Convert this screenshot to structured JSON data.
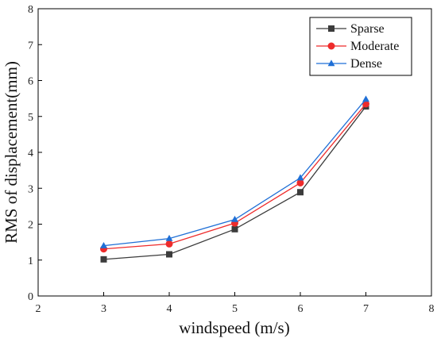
{
  "chart_data": {
    "type": "line",
    "title": "",
    "xlabel": "windspeed (m/s)",
    "ylabel": "RMS of displacement(mm)",
    "xlim": [
      2,
      8
    ],
    "ylim": [
      0,
      8
    ],
    "xticks": [
      "2",
      "3",
      "4",
      "5",
      "6",
      "7",
      "8"
    ],
    "yticks": [
      "0",
      "1",
      "2",
      "3",
      "4",
      "5",
      "6",
      "7",
      "8"
    ],
    "grid": false,
    "legend_position": "top-right",
    "x": [
      3,
      4,
      5,
      6,
      7
    ],
    "series": [
      {
        "name": "Sparse",
        "values": [
          1.02,
          1.16,
          1.86,
          2.89,
          5.28
        ],
        "color": "#3c3c3c",
        "marker": "square"
      },
      {
        "name": "Moderate",
        "values": [
          1.31,
          1.45,
          2.03,
          3.15,
          5.35
        ],
        "color": "#ee2b2b",
        "marker": "circle"
      },
      {
        "name": "Dense",
        "values": [
          1.4,
          1.6,
          2.13,
          3.29,
          5.48
        ],
        "color": "#1f6fd6",
        "marker": "triangle"
      }
    ]
  }
}
